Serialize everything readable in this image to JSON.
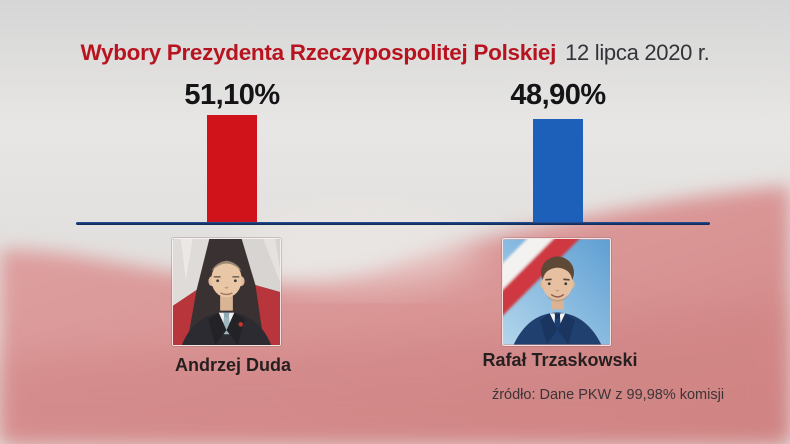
{
  "header": {
    "title": "Wybory Prezydenta Rzeczypospolitej Polskiej",
    "date": "12 lipca 2020 r."
  },
  "chart_data": {
    "type": "bar",
    "title": "Wybory Prezydenta Rzeczypospolitej Polskiej",
    "subtitle": "12 lipca 2020 r.",
    "categories": [
      "Andrzej Duda",
      "Rafał Trzaskowski"
    ],
    "values": [
      51.1,
      48.9
    ],
    "value_labels": [
      "51,10%",
      "48,90%"
    ],
    "series_colors": [
      "#d0121a",
      "#1c60ba"
    ],
    "ylim": [
      0,
      52
    ],
    "grid": false,
    "legend": false,
    "source": "źródło: Dane PKW z 99,98% komisji"
  },
  "candidates": [
    {
      "name": "Andrzej Duda",
      "value": 51.1,
      "value_label": "51,10%",
      "bar_color": "#d0121a"
    },
    {
      "name": "Rafał Trzaskowski",
      "value": 48.9,
      "value_label": "48,90%",
      "bar_color": "#1c60ba"
    }
  ],
  "source_note": "źródło: Dane PKW z 99,98% komisji",
  "colors": {
    "title_red": "#b81420",
    "baseline_navy": "#17376d",
    "duda_red": "#d0121a",
    "trzaskowski_blue": "#1c60ba",
    "background_pink": "#db9797"
  }
}
